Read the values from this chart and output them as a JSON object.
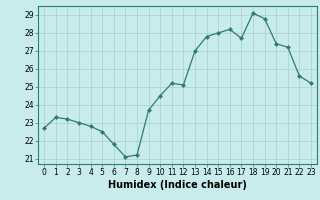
{
  "x": [
    0,
    1,
    2,
    3,
    4,
    5,
    6,
    7,
    8,
    9,
    10,
    11,
    12,
    13,
    14,
    15,
    16,
    17,
    18,
    19,
    20,
    21,
    22,
    23
  ],
  "y": [
    22.7,
    23.3,
    23.2,
    23.0,
    22.8,
    22.5,
    21.8,
    21.1,
    21.2,
    23.7,
    24.5,
    25.2,
    25.1,
    27.0,
    27.8,
    28.0,
    28.2,
    27.7,
    29.1,
    28.8,
    27.4,
    27.2,
    25.6,
    25.2
  ],
  "line_color": "#2e7d6e",
  "marker": "D",
  "marker_size": 2.0,
  "bg_color": "#c8ecec",
  "grid_color": "#aacfcf",
  "xlabel": "Humidex (Indice chaleur)",
  "xlim": [
    -0.5,
    23.5
  ],
  "ylim": [
    20.7,
    29.5
  ],
  "yticks": [
    21,
    22,
    23,
    24,
    25,
    26,
    27,
    28,
    29
  ],
  "xticks": [
    0,
    1,
    2,
    3,
    4,
    5,
    6,
    7,
    8,
    9,
    10,
    11,
    12,
    13,
    14,
    15,
    16,
    17,
    18,
    19,
    20,
    21,
    22,
    23
  ],
  "tick_fontsize": 5.5,
  "xlabel_fontsize": 7.0,
  "spine_color": "#2e7d6e",
  "line_width": 0.9
}
